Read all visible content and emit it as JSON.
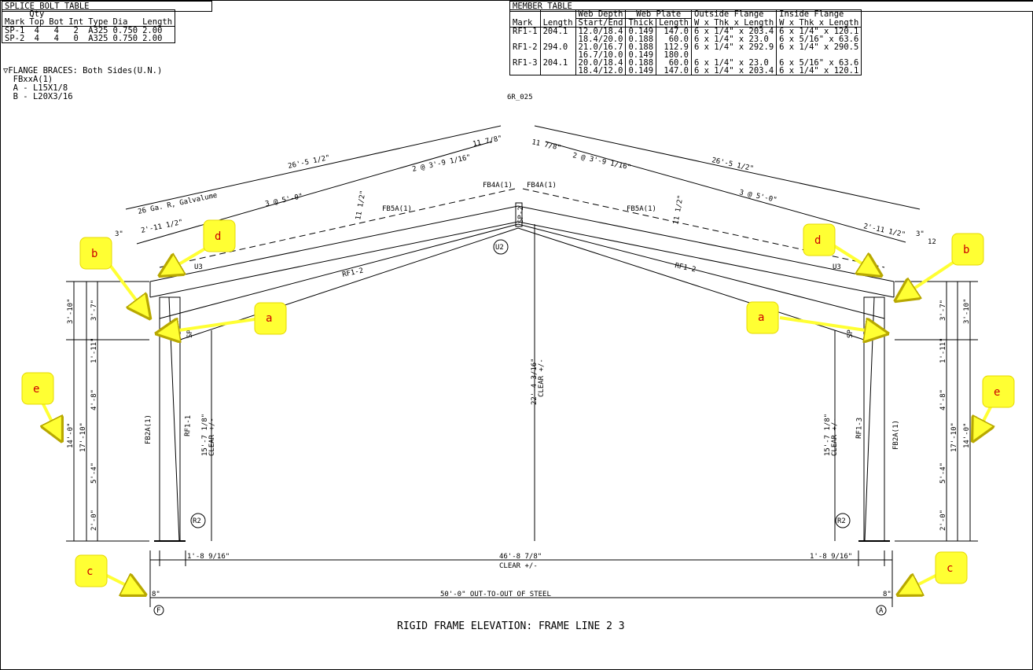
{
  "splice_table": {
    "title": "SPLICE BOLT TABLE",
    "headers": [
      "Mark",
      "Qty Top",
      "Bot",
      "Int",
      "Type",
      "Dia",
      "Length"
    ],
    "qty_label": "Qty",
    "qty_sub": [
      "Top",
      "Bot",
      "Int"
    ],
    "rows": [
      [
        "SP-1",
        "4",
        "4",
        "2",
        "A325",
        "0.750",
        "2.00"
      ],
      [
        "SP-2",
        "4",
        "4",
        "0",
        "A325",
        "0.750",
        "2.00"
      ]
    ]
  },
  "member_table": {
    "title": "MEMBER TABLE",
    "col_mark": "Mark",
    "col_length": "Length",
    "col_web_depth": "Web Depth",
    "col_web_depth_sub": "Start/End",
    "col_web_plate": "Web Plate",
    "col_thick": "Thick",
    "col_plate_length": "Length",
    "col_outside": "Outside Flange",
    "col_outside_sub": "W x Thk x Length",
    "col_inside": "Inside Flange",
    "col_inside_sub": "W x Thk x Length",
    "rows": [
      {
        "mark": "RF1-1",
        "length": "204.1",
        "depth": "12.0/18.4",
        "thick": "0.149",
        "plen": "147.0",
        "outside": "6 x 1/4\" x 203.4",
        "inside": "6 x 1/4\" x 120.1"
      },
      {
        "mark": "",
        "length": "",
        "depth": "18.4/20.0",
        "thick": "0.188",
        "plen": "60.0",
        "outside": "6 x 1/4\" x 23.0",
        "inside": "6 x 5/16\" x 63.6"
      },
      {
        "mark": "RF1-2",
        "length": "294.0",
        "depth": "21.0/16.7",
        "thick": "0.188",
        "plen": "112.9",
        "outside": "6 x 1/4\" x 292.9",
        "inside": "6 x 1/4\" x 290.5"
      },
      {
        "mark": "",
        "length": "",
        "depth": "16.7/10.0",
        "thick": "0.149",
        "plen": "180.0",
        "outside": "",
        "inside": ""
      },
      {
        "mark": "RF1-3",
        "length": "204.1",
        "depth": "20.0/18.4",
        "thick": "0.188",
        "plen": "60.0",
        "outside": "6 x 1/4\" x 23.0",
        "inside": "6 x 5/16\" x 63.6"
      },
      {
        "mark": "",
        "length": "",
        "depth": "18.4/12.0",
        "thick": "0.149",
        "plen": "147.0",
        "outside": "6 x 1/4\" x 203.4",
        "inside": "6 x 1/4\" x 120.1"
      }
    ]
  },
  "flange_braces": {
    "heading": "FLANGE BRACES: Both Sides(U.N.)",
    "format": "FBxxA(1)",
    "a": "A - L15X1/8",
    "b": "B - L20X3/16"
  },
  "drawing": {
    "title": "RIGID FRAME ELEVATION: FRAME LINE 2  3",
    "ridge_label": "6R_025",
    "sp2": "SP-2",
    "rafter_left_total": "26'-5 1/2\"",
    "rafter_right_total": "26'-5 1/2\"",
    "purlin_spacing_2": "2 @ 3'-9 1/16\"",
    "purlin_spacing_2_right": "2 @ 3'-9 1/16\"",
    "purlin_spacing_3": "3 @ 5'-0\"",
    "purlin_spacing_3_right": "3 @ 5'-0\"",
    "ridge_left_dim": "11 7/8\"",
    "ridge_right_dim": "11 7/8\"",
    "eave_left_dim": "2'-11 1/2\"",
    "eave_right_dim": "2'-11 1/2\"",
    "roof_panel": "26 Ga. R, Galvalume",
    "slope_left": "3\"",
    "slope_right_rise": "3\"",
    "slope_right_run": "12",
    "rafter_depth_left": "11 1/2\"",
    "rafter_depth_right": "11 1/2\"",
    "fb5a_left": "FB5A(1)",
    "fb4a_left": "FB4A(1)",
    "fb4a_right": "FB4A(1)",
    "fb5a_right": "FB5A(1)",
    "rf12_left": "RF1-2",
    "rf12_right": "RF1-2",
    "rf11": "RF1-1",
    "rf13": "RF1-3",
    "fb2a_left": "FB2A(1)",
    "fb2a_right": "FB2A(1)",
    "sp_left": "SP",
    "sp_right": "SP",
    "u2": "U2",
    "u3_left": "U3",
    "u3_right": "U3",
    "r2_left": "R2",
    "r2_right": "R2",
    "col_clear_left": "15'-7 1/8\"",
    "col_clear_left_sub": "CLEAR +/-",
    "col_clear_right": "15'-7 1/8\"",
    "col_clear_right_sub": "CLEAR +/-",
    "ridge_clear": "22'-4 3/16\"",
    "ridge_clear_sub": "CLEAR +/-",
    "clear_span": "46'-8 7/8\"",
    "clear_span_sub": "CLEAR +/-",
    "col_depth_left": "1'-8 9/16\"",
    "col_depth_right": "1'-8 9/16\"",
    "out_to_out": "50'-0\" OUT-TO-OUT OF STEEL",
    "grid_left": "F",
    "grid_right": "A",
    "dims_outer": [
      "3'-10\"",
      "17'-10\"",
      "14'-0\""
    ],
    "dims_inner": [
      "3'-7\"",
      "1'-11\"",
      "4'-8\"",
      "5'-4\"",
      "2'-0\""
    ],
    "base_left": "8\"",
    "base_right": "8\""
  },
  "callouts": [
    "a",
    "b",
    "c",
    "d",
    "e"
  ],
  "colors": {
    "callout_fill": "#ffff33",
    "callout_border": "#e6d800",
    "callout_text": "#cc0000",
    "line": "#000000"
  }
}
